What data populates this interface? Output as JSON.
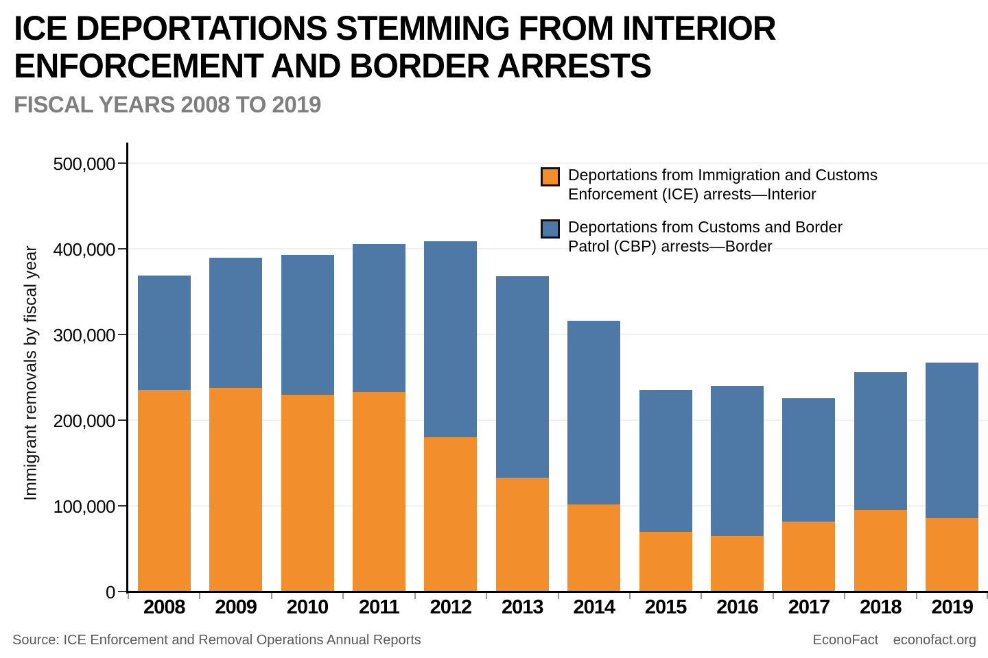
{
  "header": {
    "title_line1": "ICE DEPORTATIONS STEMMING FROM INTERIOR",
    "title_line2": "ENFORCEMENT AND BORDER ARRESTS",
    "subtitle": "FISCAL YEARS 2008 TO 2019"
  },
  "chart_data": {
    "type": "bar",
    "stacked": true,
    "title": "ICE DEPORTATIONS STEMMING FROM INTERIOR ENFORCEMENT AND BORDER ARRESTS",
    "subtitle": "FISCAL YEARS 2008 TO 2019",
    "ylabel": "Immigrant removals by fiscal year",
    "xlabel": "",
    "ylim": [
      0,
      500000
    ],
    "grid": "horizontal",
    "legend_position": "top-right-inside",
    "categories": [
      "2008",
      "2009",
      "2010",
      "2011",
      "2012",
      "2013",
      "2014",
      "2015",
      "2016",
      "2017",
      "2018",
      "2019"
    ],
    "series": [
      {
        "name": "Deportations from Immigration and Customs Enforcement (ICE) arrests—Interior",
        "color": "#F28E2B",
        "values": [
          235000,
          238000,
          230000,
          233000,
          180000,
          133000,
          102000,
          70000,
          65000,
          82000,
          95000,
          86000
        ]
      },
      {
        "name": "Deportations from Customs and Border Patrol (CBP) arrests—Border",
        "color": "#4E79A7",
        "values": [
          134000,
          152000,
          163000,
          173000,
          229000,
          235000,
          214000,
          165000,
          175000,
          144000,
          161000,
          181000
        ]
      }
    ],
    "totals": [
      369000,
      390000,
      393000,
      406000,
      409000,
      368000,
      316000,
      235000,
      240000,
      226000,
      256000,
      267000
    ],
    "y_ticks": [
      {
        "value": 0,
        "label": "0"
      },
      {
        "value": 100000,
        "label": "100,000"
      },
      {
        "value": 200000,
        "label": "200,000"
      },
      {
        "value": 300000,
        "label": "300,000"
      },
      {
        "value": 400000,
        "label": "400,000"
      },
      {
        "value": 500000,
        "label": "500,000"
      }
    ]
  },
  "legend": {
    "items": [
      {
        "color": "#F28E2B",
        "line1": "Deportations from Immigration and Customs",
        "line2": "Enforcement (ICE) arrests—Interior"
      },
      {
        "color": "#4E79A7",
        "line1": "Deportations from Customs and Border",
        "line2": "Patrol (CBP) arrests—Border"
      }
    ]
  },
  "footer": {
    "source": "Source: ICE Enforcement and Removal Operations Annual Reports",
    "brand": "EconoFact",
    "site": "econofact.org"
  }
}
